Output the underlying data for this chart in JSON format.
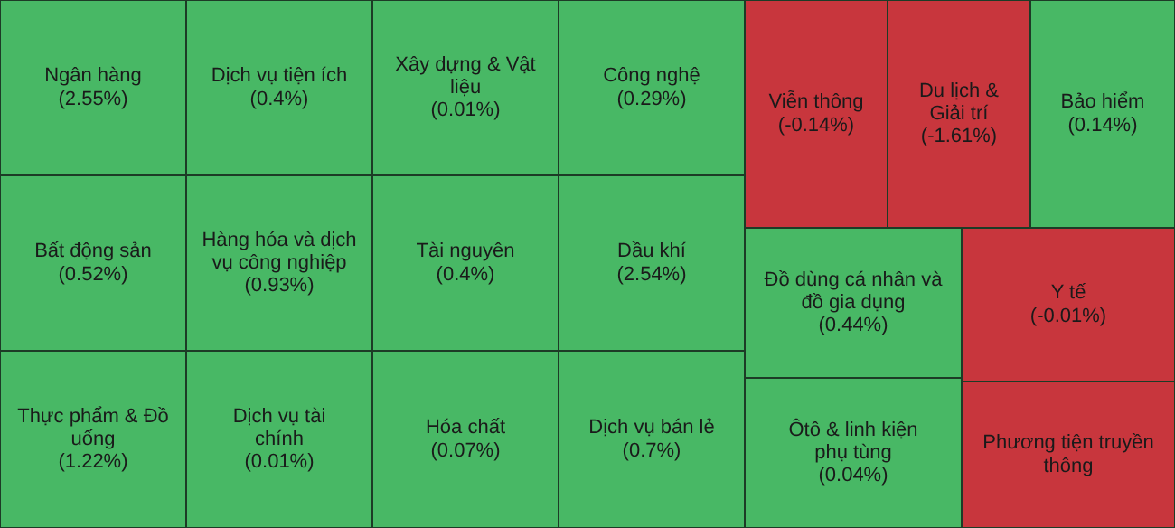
{
  "chart_data": {
    "type": "other",
    "categories": [
      "Ngân hàng",
      "Bất động sản",
      "Thực phẩm & Đồ uống",
      "Dịch vụ tiện ích",
      "Hàng hóa và dịch vụ công nghiệp",
      "Dịch vụ tài chính",
      "Xây dựng & Vật liệu",
      "Tài nguyên",
      "Hóa chất",
      "Công nghệ",
      "Dầu khí",
      "Dịch vụ bán lẻ",
      "Viễn thông",
      "Du lịch & Giải trí",
      "Bảo hiểm",
      "Đồ dùng cá nhân và đồ gia dụng",
      "Ôtô & linh kiện phụ tùng",
      "Y tế",
      "Phương tiện truyền thông"
    ],
    "values": [
      2.55,
      0.52,
      1.22,
      0.4,
      0.93,
      0.01,
      0.01,
      0.4,
      0.07,
      0.29,
      2.54,
      0.7,
      -0.14,
      -1.61,
      0.14,
      0.44,
      0.04,
      -0.01,
      null
    ],
    "value_labels": [
      "(2.55%)",
      "(0.52%)",
      "(1.22%)",
      "(0.4%)",
      "(0.93%)",
      "(0.01%)",
      "(0.01%)",
      "(0.4%)",
      "(0.07%)",
      "(0.29%)",
      "(2.54%)",
      "(0.7%)",
      "(-0.14%)",
      "(-1.61%)",
      "(0.14%)",
      "(0.44%)",
      "(0.04%)",
      "(-0.01%)",
      null
    ],
    "colors": [
      "#48b865",
      "#48b865",
      "#48b865",
      "#48b865",
      "#48b865",
      "#48b865",
      "#48b865",
      "#48b865",
      "#48b865",
      "#48b865",
      "#48b865",
      "#48b865",
      "#c8363d",
      "#c8363d",
      "#48b865",
      "#48b865",
      "#48b865",
      "#c8363d",
      "#c8363d"
    ]
  }
}
